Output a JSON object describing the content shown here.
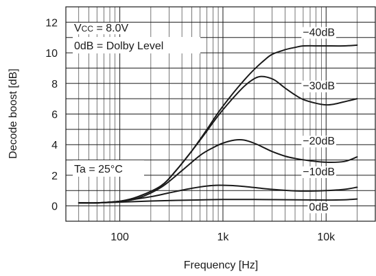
{
  "chart_data": {
    "type": "line",
    "xlabel": "Frequency [Hz]",
    "ylabel": "Decode boost [dB]",
    "xscale": "log",
    "xlim": [
      30,
      30000
    ],
    "ylim": [
      -1,
      13
    ],
    "x_ticks": [
      {
        "value": 100,
        "label": "100"
      },
      {
        "value": 1000,
        "label": "1k"
      },
      {
        "value": 10000,
        "label": "10k"
      }
    ],
    "y_ticks": [
      {
        "value": 0,
        "label": "0"
      },
      {
        "value": 2,
        "label": "2"
      },
      {
        "value": 4,
        "label": "4"
      },
      {
        "value": 6,
        "label": "6"
      },
      {
        "value": 8,
        "label": "8"
      },
      {
        "value": 10,
        "label": "10"
      },
      {
        "value": 12,
        "label": "12"
      }
    ],
    "grid": true,
    "annotations": {
      "vcc_prefix": "V",
      "vcc_sub": "CC",
      "vcc_value": " = 8.0V",
      "dolby": "0dB = Dolby Level",
      "ta": "Ta = 25°C"
    },
    "series": [
      {
        "name": "−40dB",
        "label_at": [
          8500,
          11.1
        ],
        "x": [
          40,
          60,
          100,
          150,
          250,
          350,
          500,
          700,
          900,
          1200,
          1600,
          2000,
          2500,
          3000,
          4000,
          5000,
          6000,
          8000,
          10000,
          15000,
          20000
        ],
        "y": [
          0.2,
          0.2,
          0.3,
          0.6,
          1.3,
          2.3,
          3.6,
          5.0,
          6.1,
          7.2,
          8.2,
          8.9,
          9.5,
          9.9,
          10.2,
          10.35,
          10.45,
          10.45,
          10.45,
          10.45,
          10.5
        ]
      },
      {
        "name": "−30dB",
        "label_at": [
          8500,
          7.6
        ],
        "x": [
          40,
          60,
          100,
          150,
          250,
          350,
          500,
          700,
          900,
          1200,
          1600,
          2000,
          2300,
          2700,
          3200,
          4000,
          5000,
          6000,
          8000,
          10000,
          12000,
          15000,
          20000
        ],
        "y": [
          0.2,
          0.2,
          0.3,
          0.6,
          1.3,
          2.3,
          3.6,
          4.9,
          5.9,
          6.9,
          7.8,
          8.3,
          8.45,
          8.4,
          8.2,
          7.7,
          7.25,
          6.95,
          6.7,
          6.6,
          6.65,
          6.8,
          7.0
        ]
      },
      {
        "name": "−20dB",
        "label_at": [
          8500,
          4.0
        ],
        "x": [
          40,
          60,
          100,
          150,
          250,
          400,
          600,
          800,
          1000,
          1300,
          1600,
          2000,
          2500,
          3000,
          4000,
          5000,
          7000,
          10000,
          15000,
          20000
        ],
        "y": [
          0.2,
          0.2,
          0.3,
          0.5,
          1.2,
          2.3,
          3.3,
          3.8,
          4.1,
          4.3,
          4.3,
          4.1,
          3.8,
          3.55,
          3.25,
          3.1,
          2.95,
          2.85,
          2.9,
          3.2
        ]
      },
      {
        "name": "−10dB",
        "label_at": [
          8500,
          2.0
        ],
        "x": [
          40,
          60,
          100,
          200,
          300,
          500,
          700,
          900,
          1200,
          1600,
          2000,
          3000,
          5000,
          7000,
          10000,
          15000,
          20000
        ],
        "y": [
          0.2,
          0.2,
          0.3,
          0.6,
          0.85,
          1.15,
          1.3,
          1.35,
          1.33,
          1.27,
          1.2,
          1.08,
          0.98,
          0.97,
          1.0,
          1.08,
          1.22
        ]
      },
      {
        "name": "0dB",
        "label_at": [
          8500,
          -0.3
        ],
        "x": [
          40,
          60,
          100,
          200,
          500,
          1000,
          2000,
          5000,
          10000,
          15000,
          20000
        ],
        "y": [
          0.2,
          0.2,
          0.25,
          0.32,
          0.38,
          0.42,
          0.42,
          0.4,
          0.38,
          0.4,
          0.45
        ]
      }
    ]
  }
}
